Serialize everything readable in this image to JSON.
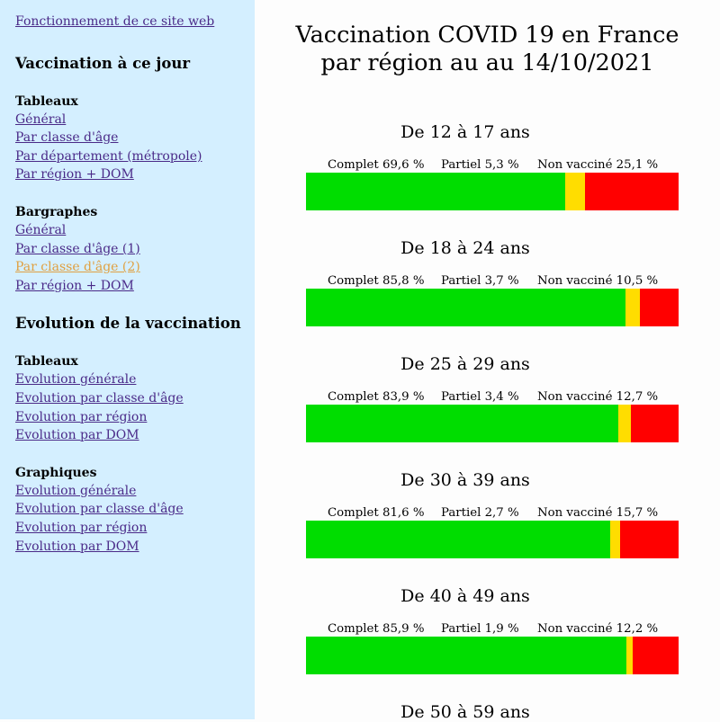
{
  "sidebar": {
    "top_link": "Fonctionnement de ce site web",
    "sections": [
      {
        "title": "Vaccination à ce jour",
        "groups": [
          {
            "title": "Tableaux",
            "links": [
              "Général",
              "Par classe d'âge",
              "Par département (métropole)",
              "Par région + DOM"
            ]
          },
          {
            "title": "Bargraphes",
            "links": [
              "Général",
              "Par classe d'âge (1)",
              "Par classe d'âge (2)",
              "Par région + DOM"
            ]
          }
        ]
      },
      {
        "title": "Evolution de la vaccination",
        "groups": [
          {
            "title": "Tableaux",
            "links": [
              "Evolution générale",
              "Evolution par classe d'âge",
              "Evolution par région",
              "Evolution par DOM"
            ]
          },
          {
            "title": "Graphiques",
            "links": [
              "Evolution générale",
              "Evolution par classe d'âge",
              "Evolution par région",
              "Evolution par DOM"
            ]
          }
        ]
      }
    ],
    "current_link_color": "#e0a040",
    "link_color": "#4a2a88"
  },
  "main": {
    "title_line1": "Vaccination COVID 19 en France",
    "title_line2": "par région au au 14/10/2021"
  },
  "colors": {
    "complet": "#00dd00",
    "partiel": "#ffdd00",
    "non_vaccine": "#ff0000",
    "sidebar_bg": "#d4efff"
  },
  "chart_data": {
    "type": "bar",
    "stacked": true,
    "orientation": "horizontal",
    "categories": [
      "De 12 à 17 ans",
      "De 18 à 24 ans",
      "De 25 à 29 ans",
      "De 30 à 39 ans",
      "De 40 à 49 ans",
      "De 50 à 59 ans"
    ],
    "series": [
      {
        "name": "Complet",
        "values": [
          69.6,
          85.8,
          83.9,
          81.6,
          85.9,
          null
        ]
      },
      {
        "name": "Partiel",
        "values": [
          5.3,
          3.7,
          3.4,
          2.7,
          1.9,
          null
        ]
      },
      {
        "name": "Non vacciné",
        "values": [
          25.1,
          10.5,
          12.7,
          15.7,
          12.2,
          null
        ]
      }
    ],
    "labels": [
      {
        "complet": "Complet 69,6 %",
        "partiel": "Partiel 5,3 %",
        "non_vaccine": "Non vacciné 25,1 %"
      },
      {
        "complet": "Complet 85,8 %",
        "partiel": "Partiel 3,7 %",
        "non_vaccine": "Non vacciné 10,5 %"
      },
      {
        "complet": "Complet 83,9 %",
        "partiel": "Partiel 3,4 %",
        "non_vaccine": "Non vacciné 12,7 %"
      },
      {
        "complet": "Complet 81,6 %",
        "partiel": "Partiel 2,7 %",
        "non_vaccine": "Non vacciné 15,7 %"
      },
      {
        "complet": "Complet 85,9 %",
        "partiel": "Partiel 1,9 %",
        "non_vaccine": "Non vacciné 12,2 %"
      },
      null
    ]
  }
}
